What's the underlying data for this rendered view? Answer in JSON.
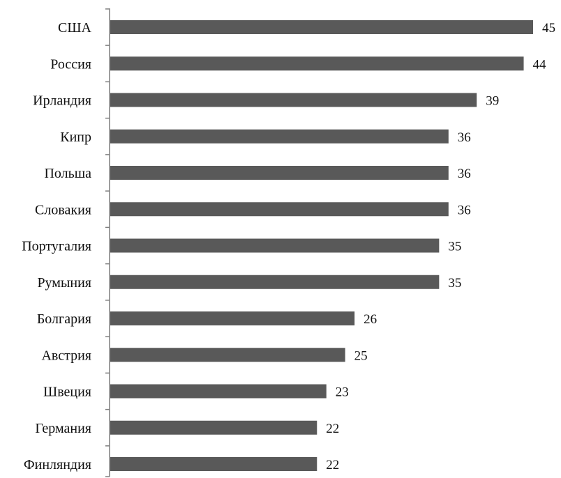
{
  "chart_data": {
    "type": "bar",
    "orientation": "horizontal",
    "title": "",
    "xlabel": "",
    "ylabel": "",
    "categories": [
      "США",
      "Россия",
      "Ирландия",
      "Кипр",
      "Польша",
      "Словакия",
      "Португалия",
      "Румыния",
      "Болгария",
      "Австрия",
      "Швеция",
      "Германия",
      "Финляндия"
    ],
    "values": [
      45,
      44,
      39,
      36,
      36,
      36,
      35,
      35,
      26,
      25,
      23,
      22,
      22
    ],
    "xlim": [
      0,
      45
    ],
    "grid": false,
    "legend": "none",
    "data_labels": true,
    "bar_color": "#595959"
  }
}
